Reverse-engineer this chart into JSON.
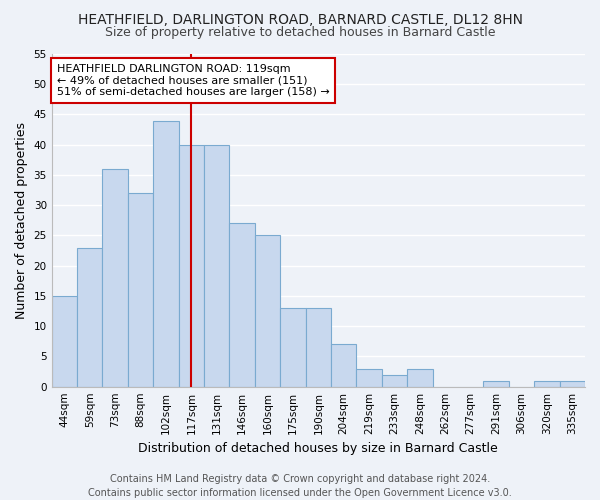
{
  "title": "HEATHFIELD, DARLINGTON ROAD, BARNARD CASTLE, DL12 8HN",
  "subtitle": "Size of property relative to detached houses in Barnard Castle",
  "xlabel": "Distribution of detached houses by size in Barnard Castle",
  "ylabel": "Number of detached properties",
  "categories": [
    "44sqm",
    "59sqm",
    "73sqm",
    "88sqm",
    "102sqm",
    "117sqm",
    "131sqm",
    "146sqm",
    "160sqm",
    "175sqm",
    "190sqm",
    "204sqm",
    "219sqm",
    "233sqm",
    "248sqm",
    "262sqm",
    "277sqm",
    "291sqm",
    "306sqm",
    "320sqm",
    "335sqm"
  ],
  "values": [
    15,
    23,
    36,
    32,
    44,
    40,
    40,
    27,
    25,
    13,
    13,
    7,
    3,
    2,
    3,
    0,
    0,
    1,
    0,
    1,
    1
  ],
  "bar_color": "#c8d8ee",
  "bar_edge_color": "#7aaad0",
  "vline_x_index": 5,
  "vline_color": "#cc0000",
  "ylim": [
    0,
    55
  ],
  "yticks": [
    0,
    5,
    10,
    15,
    20,
    25,
    30,
    35,
    40,
    45,
    50,
    55
  ],
  "annotation_title": "HEATHFIELD DARLINGTON ROAD: 119sqm",
  "annotation_line1": "← 49% of detached houses are smaller (151)",
  "annotation_line2": "51% of semi-detached houses are larger (158) →",
  "annotation_box_color": "#ffffff",
  "annotation_box_edge": "#cc0000",
  "footer_line1": "Contains HM Land Registry data © Crown copyright and database right 2024.",
  "footer_line2": "Contains public sector information licensed under the Open Government Licence v3.0.",
  "background_color": "#eef2f8",
  "grid_color": "#ffffff",
  "title_fontsize": 10,
  "subtitle_fontsize": 9,
  "axis_label_fontsize": 9,
  "tick_fontsize": 7.5,
  "annotation_fontsize": 8,
  "footer_fontsize": 7
}
